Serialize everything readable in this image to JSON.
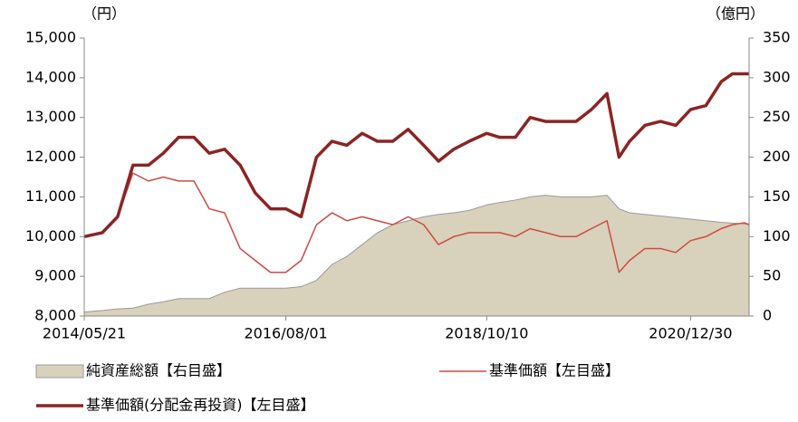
{
  "chart_data": {
    "type": "line",
    "y_unit_label": "（円）",
    "y2_unit_label": "（億円）",
    "x": [
      "2014/05/21",
      "2014/08/01",
      "2014/10/01",
      "2014/12/01",
      "2015/02/01",
      "2015/04/01",
      "2015/06/01",
      "2015/08/01",
      "2015/10/01",
      "2015/12/01",
      "2016/02/01",
      "2016/04/01",
      "2016/06/01",
      "2016/08/01",
      "2016/10/01",
      "2016/12/01",
      "2017/02/01",
      "2017/04/01",
      "2017/06/01",
      "2017/08/01",
      "2017/10/01",
      "2017/12/01",
      "2018/02/01",
      "2018/04/01",
      "2018/06/01",
      "2018/08/01",
      "2018/10/10",
      "2018/12/01",
      "2019/02/01",
      "2019/04/01",
      "2019/06/01",
      "2019/08/01",
      "2019/10/01",
      "2019/12/01",
      "2020/02/01",
      "2020/03/20",
      "2020/05/01",
      "2020/07/01",
      "2020/09/01",
      "2020/11/01",
      "2020/12/30",
      "2021/03/01",
      "2021/05/01",
      "2021/06/15",
      "2021/08/01",
      "2021/08/20"
    ],
    "xlim": [
      "2014/05/21",
      "2021/08/20"
    ],
    "xticks": [
      "2014/05/21",
      "2016/08/01",
      "2018/10/10",
      "2020/12/30"
    ],
    "ylim": [
      8000,
      15000
    ],
    "yticks": [
      {
        "value": 8000,
        "label": "8,000"
      },
      {
        "value": 9000,
        "label": "9,000"
      },
      {
        "value": 10000,
        "label": "10,000"
      },
      {
        "value": 11000,
        "label": "11,000"
      },
      {
        "value": 12000,
        "label": "12,000"
      },
      {
        "value": 13000,
        "label": "13,000"
      },
      {
        "value": 14000,
        "label": "14,000"
      },
      {
        "value": 15000,
        "label": "15,000"
      }
    ],
    "y2lim": [
      0,
      350
    ],
    "y2ticks": [
      0,
      50,
      100,
      150,
      200,
      250,
      300,
      350
    ],
    "series": [
      {
        "name": "純資産総額【右目盛】",
        "color": "#d8d1bc",
        "kind": "area",
        "axis": "y2",
        "values": [
          5,
          7,
          9,
          10,
          15,
          18,
          22,
          22,
          22,
          30,
          35,
          35,
          35,
          35,
          37,
          45,
          65,
          75,
          90,
          105,
          115,
          120,
          125,
          128,
          130,
          133,
          140,
          143,
          146,
          150,
          152,
          150,
          150,
          150,
          152,
          135,
          130,
          128,
          126,
          124,
          122,
          120,
          118,
          117,
          116,
          115
        ]
      },
      {
        "name": "基準価額【左目盛】",
        "color": "#cf4a43",
        "kind": "line",
        "values": [
          10000,
          10100,
          10500,
          11600,
          11400,
          11500,
          11400,
          11400,
          10700,
          10600,
          9700,
          9400,
          9100,
          9100,
          9400,
          10300,
          10600,
          10400,
          10500,
          10400,
          10300,
          10500,
          10300,
          9800,
          10000,
          10100,
          10100,
          10100,
          10000,
          10200,
          10100,
          10000,
          10000,
          10200,
          10400,
          9100,
          9400,
          9700,
          9700,
          9600,
          9900,
          10000,
          10200,
          10300,
          10350,
          10300
        ]
      },
      {
        "name": "基準価額(分配金再投資)【左目盛】",
        "color": "#8c2424",
        "kind": "thick-line",
        "values": [
          10000,
          10100,
          10500,
          11800,
          11800,
          12100,
          12500,
          12500,
          12100,
          12200,
          11800,
          11100,
          10700,
          10700,
          10500,
          12000,
          12400,
          12300,
          12600,
          12400,
          12400,
          12700,
          12300,
          11900,
          12200,
          12400,
          12600,
          12500,
          12500,
          13000,
          12900,
          12900,
          12900,
          13200,
          13600,
          12000,
          12400,
          12800,
          12900,
          12800,
          13200,
          13300,
          13900,
          14100,
          14100,
          14100
        ]
      }
    ]
  }
}
